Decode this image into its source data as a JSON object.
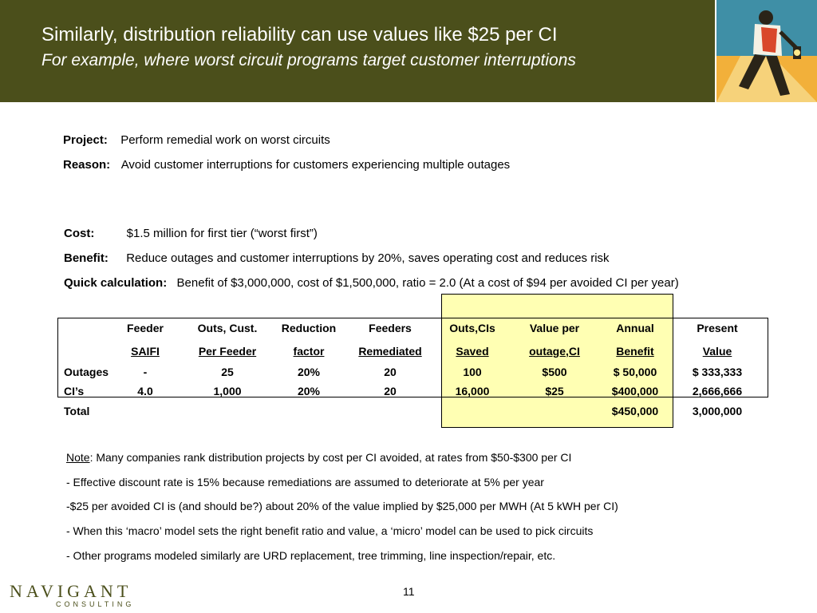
{
  "header": {
    "title": "Similarly, distribution reliability can use values like $25 per CI",
    "subtitle": "For example, where worst circuit programs target customer interruptions",
    "bg_color": "#4b4f1b",
    "art_icon": "walking-man-lantern-illustration"
  },
  "project": {
    "project_label": "Project:",
    "project_text": "Perform remedial work on worst circuits",
    "reason_label": "Reason:",
    "reason_text": "Avoid customer interruptions for customers experiencing multiple outages"
  },
  "cost": {
    "cost_label": "Cost:",
    "cost_text": "$1.5 million for first tier (“worst first”)",
    "benefit_label": "Benefit:",
    "benefit_text": "Reduce outages and customer interruptions by 20%, saves operating cost and reduces risk",
    "quick_label": "Quick calculation:",
    "quick_text": "Benefit  of $3,000,000, cost of $1,500,000, ratio = 2.0  (At a cost of $94 per avoided CI per year)"
  },
  "table": {
    "header1": [
      "Feeder",
      "Outs, Cust.",
      "Reduction",
      "Feeders",
      "Outs,CIs",
      "Value per",
      "Annual",
      "Present"
    ],
    "header2": [
      "SAIFI",
      "Per Feeder",
      "factor",
      "Remediated",
      "Saved",
      "outage,CI",
      "Benefit",
      "Value"
    ],
    "rows": [
      {
        "label": "Outages",
        "cells": [
          "-",
          "25",
          "20%",
          "20",
          "100",
          "$500",
          "$  50,000",
          "$  333,333"
        ]
      },
      {
        "label": "CI’s",
        "cells": [
          "4.0",
          "1,000",
          "20%",
          "20",
          "16,000",
          "$25",
          "$400,000",
          "2,666,666"
        ]
      }
    ],
    "total": {
      "label": "Total",
      "annual": "$450,000",
      "present": "3,000,000"
    },
    "highlight_color": "#ffffb3"
  },
  "notes": {
    "note_label": "Note",
    "note_text": ": Many companies rank distribution projects by cost per CI avoided, at rates from $50-$300 per CI",
    "lines": [
      "- Effective discount rate is 15% because remediations are assumed to deteriorate at 5% per year",
      "-$25 per avoided CI is (and should be?) about 20% of the value implied by $25,000 per MWH (At 5 kWH per CI)",
      "- When this ‘macro’ model sets the right benefit ratio and value, a ‘micro’ model can be used to pick circuits",
      "- Other programs modeled similarly are URD replacement, tree trimming, line inspection/repair, etc."
    ]
  },
  "footer": {
    "logo_main": "NAVIGANT",
    "logo_sub": "CONSULTING",
    "page_number": "11"
  }
}
